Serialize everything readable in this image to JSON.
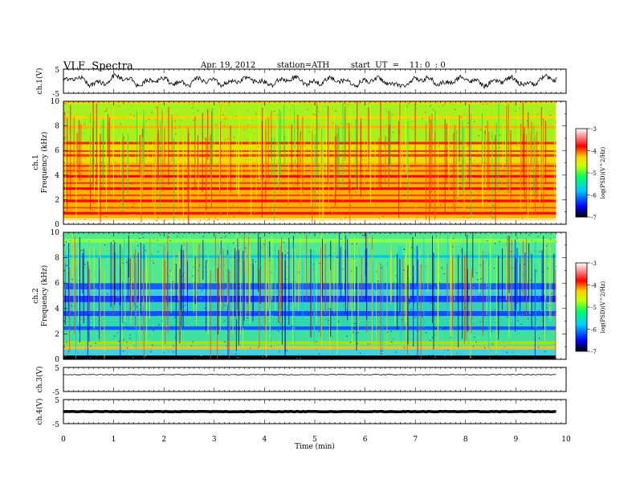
{
  "header": {
    "title": "VLF  Spectra",
    "date": "Apr. 19, 2012",
    "station": "station=ATH",
    "start": "start  UT  =    11: 0  : 0"
  },
  "chart_data": [
    {
      "type": "line",
      "ylabel": "ch.1(V)",
      "yticks": [
        "5",
        "-5"
      ],
      "ylim": [
        -5,
        5
      ],
      "xlim": [
        0,
        10
      ],
      "data_extent_min": 9.8,
      "trace": "noisy waveform, amplitude about 60% of full scale"
    },
    {
      "type": "heatmap",
      "ylabel_channel": "ch.1",
      "ylabel": "Frequency  (kHz)",
      "yticks": [
        "10",
        "8",
        "6",
        "4",
        "2",
        "0"
      ],
      "ylim": [
        0,
        10
      ],
      "xlim": [
        0,
        10
      ],
      "data_extent_min": 9.8,
      "colorbar": {
        "label": "log(PSD)(V^2/Hz)",
        "ticks": [
          "-3",
          "-4",
          "-5",
          "-6",
          "-7"
        ],
        "range": [
          -7,
          -3
        ]
      },
      "dominant": "green-yellow above 6.5 kHz, yellow-red below 6.5 kHz, red horizontal lines near 0.4-4.9 kHz and 5.9 kHz"
    },
    {
      "type": "heatmap",
      "ylabel_channel": "ch.2",
      "ylabel": "Frequency  (kHz)",
      "yticks": [
        "10",
        "8",
        "6",
        "4",
        "2",
        "0"
      ],
      "ylim": [
        0,
        10
      ],
      "xlim": [
        0,
        10
      ],
      "data_extent_min": 9.8,
      "colorbar": {
        "label": "log(PSD)(V^2/Hz)",
        "ticks": [
          "-3",
          "-4",
          "-5",
          "-6",
          "-7"
        ],
        "range": [
          -7,
          -3
        ]
      },
      "dominant": "green-cyan with blue horizontal bands near 1.5-5.5 kHz, black band at 0-0.3 kHz"
    },
    {
      "type": "line",
      "ylabel": "ch.3(V)",
      "yticks": [
        "5",
        "-5"
      ],
      "ylim": [
        -5,
        5
      ],
      "xlim": [
        0,
        10
      ],
      "data_extent_min": 9.8,
      "trace": "nearly flat line near 2 V"
    },
    {
      "type": "line",
      "ylabel": "ch.4(V)",
      "yticks": [
        "5",
        "-5"
      ],
      "ylim": [
        -5,
        5
      ],
      "xlim": [
        0,
        10
      ],
      "data_extent_min": 9.8,
      "trace": "thick flat band near 0 V"
    }
  ],
  "xaxis": {
    "label": "Time  (min)",
    "ticks": [
      "0",
      "1",
      "2",
      "3",
      "4",
      "5",
      "6",
      "7",
      "8",
      "9",
      "10"
    ]
  },
  "colors": {
    "axis": "#000000",
    "colormap": [
      "#000000",
      "#0000ff",
      "#00c8ff",
      "#00ff64",
      "#c8ff00",
      "#ffd200",
      "#ff0000",
      "#ffffff"
    ]
  }
}
